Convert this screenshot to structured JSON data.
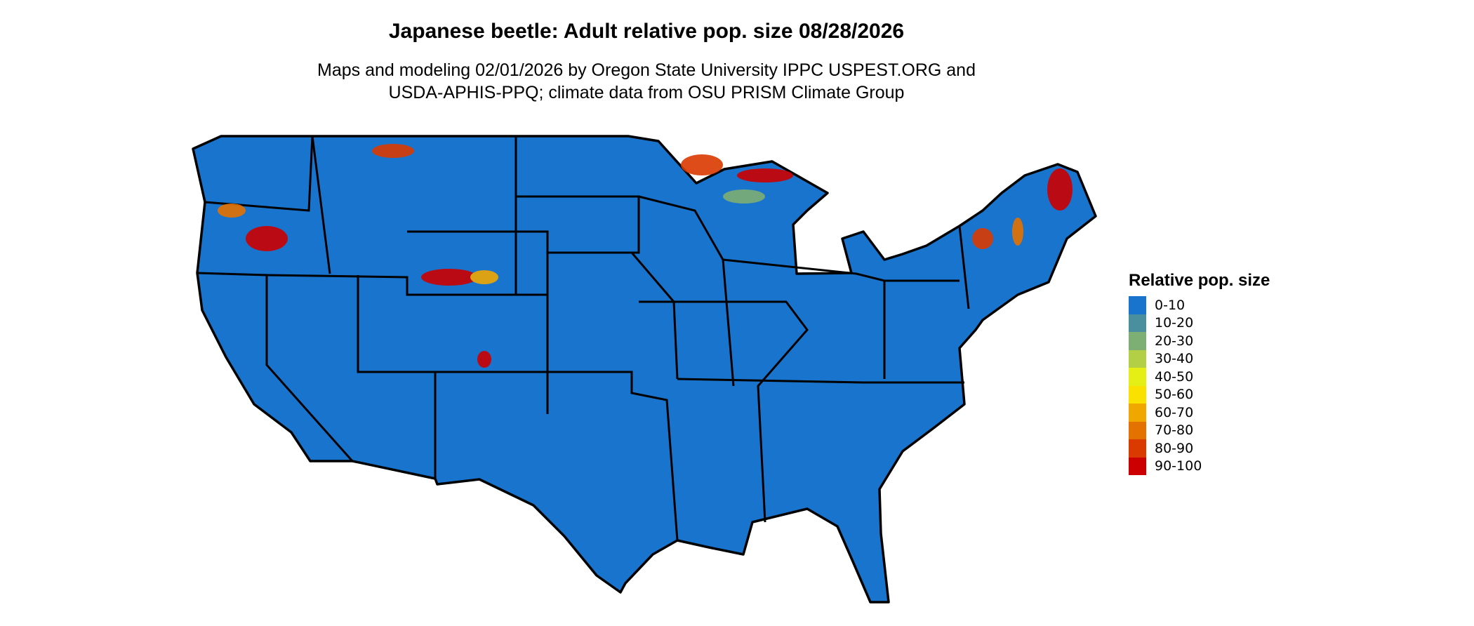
{
  "title": "Japanese beetle: Adult relative pop. size 08/28/2026",
  "subtitle_line1": "Maps and modeling 02/01/2026 by Oregon State University IPPC USPEST.ORG and",
  "subtitle_line2": "USDA-APHIS-PPQ; climate data from OSU PRISM Climate Group",
  "legend": {
    "title": "Relative pop. size",
    "items": [
      {
        "label": "0-10",
        "color": "#1874CD"
      },
      {
        "label": "10-20",
        "color": "#4A8F9E"
      },
      {
        "label": "20-30",
        "color": "#7DAE74"
      },
      {
        "label": "30-40",
        "color": "#B3CF45"
      },
      {
        "label": "40-50",
        "color": "#E5EF16"
      },
      {
        "label": "50-60",
        "color": "#FAE100"
      },
      {
        "label": "60-70",
        "color": "#F0A800"
      },
      {
        "label": "70-80",
        "color": "#E47200"
      },
      {
        "label": "80-90",
        "color": "#DA3A00"
      },
      {
        "label": "90-100",
        "color": "#CC0000"
      }
    ]
  },
  "map": {
    "region": "Contiguous United States",
    "base_color": "#1874CD",
    "border_color": "#000000"
  }
}
